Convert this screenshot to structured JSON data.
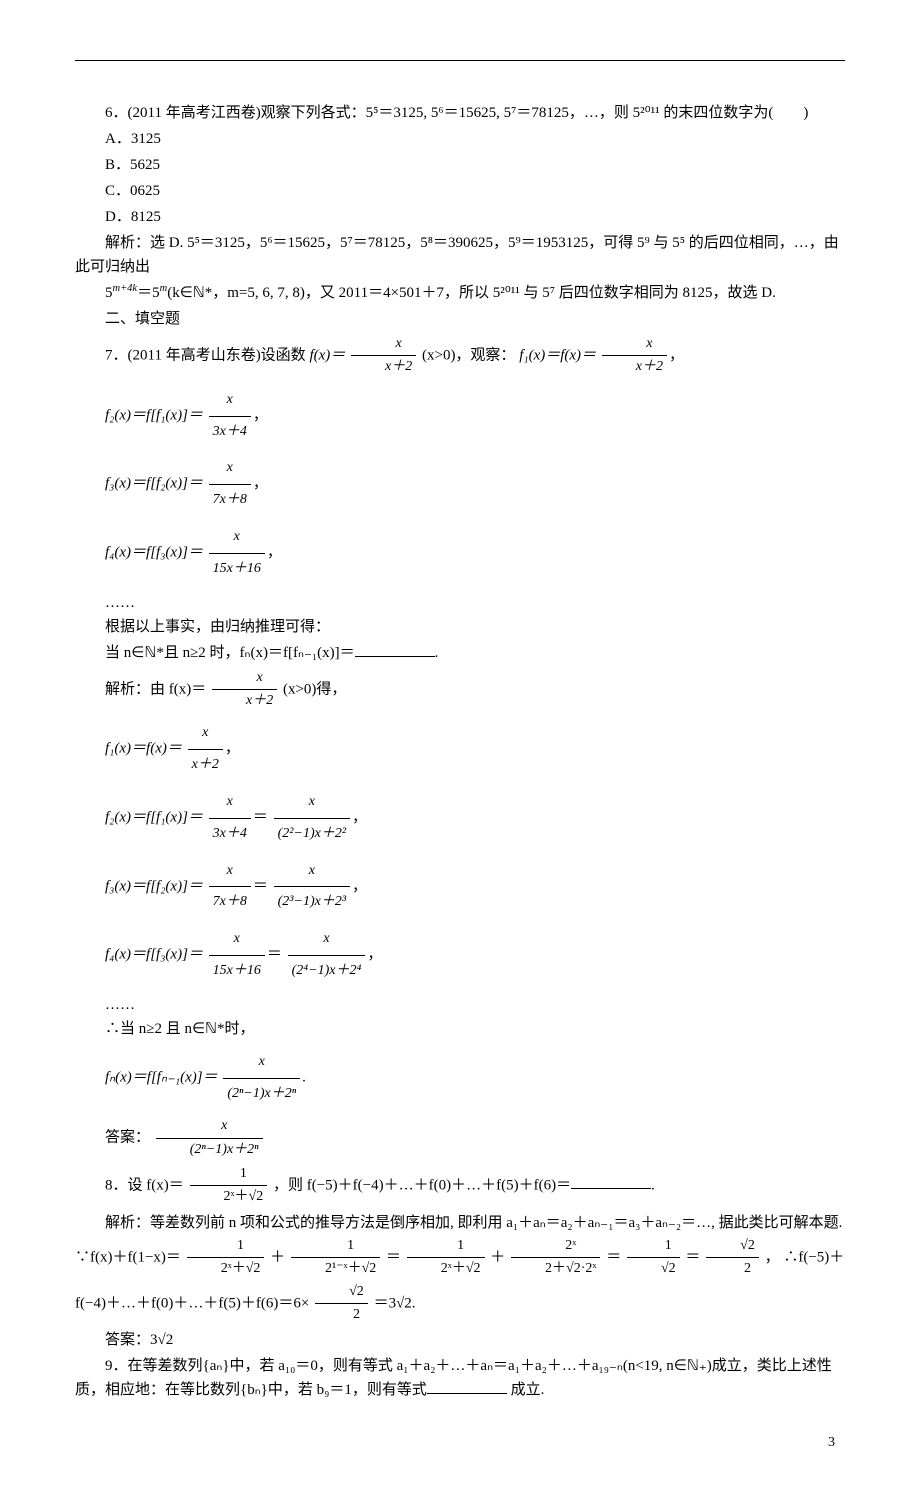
{
  "q6": {
    "text": "6．(2011 年高考江西卷)观察下列各式：5⁵＝3125, 5⁶＝15625, 5⁷＝78125，…，则 5²⁰¹¹ 的末四位数字为(　　)",
    "optA": "A．3125",
    "optB": "B．5625",
    "optC": "C．0625",
    "optD": "D．8125",
    "expl1": "解析：选 D. 5⁵＝3125，5⁶＝15625，5⁷＝78125，5⁸＝390625，5⁹＝1953125，可得 5⁹ 与 5⁵ 的后四位相同，…，由此可归纳出",
    "expl2_pre": "5",
    "expl2_sup1": "m+4k",
    "expl2_mid1": "＝5",
    "expl2_sup2": "m",
    "expl2_mid2": "(k∈ℕ*，m=5, 6, 7, 8)，又 2011＝4×501＋7，所以 5²⁰¹¹ 与 5⁷ 后四位数字相同为 8125，故选 D."
  },
  "sec2": "二、填空题",
  "q7": {
    "intro_pre": "7．(2011 年高考山东卷)设函数 ",
    "intro_fx": "f(x)＝",
    "intro_frac_num": "x",
    "intro_frac_den": "x＋2",
    "intro_cond": "(x>0)，观察：",
    "intro_f1": "f₁(x)＝f(x)＝",
    "f1_num": "x",
    "f1_den": "x＋2",
    "f2_lhs": "f₂(x)＝f[f₁(x)]＝",
    "f2_num": "x",
    "f2_den": "3x＋4",
    "f3_lhs": "f₃(x)＝f[f₂(x)]＝",
    "f3_num": "x",
    "f3_den": "7x＋8",
    "f4_lhs": "f₄(x)＝f[f₃(x)]＝",
    "f4_num": "x",
    "f4_den": "15x＋16",
    "dots": "……",
    "line_induct": "根据以上事实，由归纳推理可得：",
    "line_when": "当 n∈ℕ*且 n≥2 时，fₙ(x)＝f[fₙ₋₁(x)]＝",
    "expl_intro": "解析：由 f(x)＝",
    "expl_cond": "(x>0)得，",
    "expl_f1": "f₁(x)＝f(x)＝",
    "expl_f2_lhs": "f₂(x)＝f[f₁(x)]＝",
    "expl_f2_num2": "x",
    "expl_f2_den2": "(2²−1)x＋2²",
    "expl_f3_lhs": "f₃(x)＝f[f₂(x)]＝",
    "expl_f3_num2": "x",
    "expl_f3_den2": "(2³−1)x＋2³",
    "expl_f4_lhs": "f₄(x)＝f[f₃(x)]＝",
    "expl_f4_num2": "x",
    "expl_f4_den2": "(2⁴−1)x＋2⁴",
    "therefore": "∴当 n≥2 且 n∈ℕ*时，",
    "fn_lhs": "fₙ(x)＝f[fₙ₋₁(x)]＝",
    "fn_num": "x",
    "fn_den": "(2ⁿ−1)x＋2ⁿ",
    "ans_label": "答案：",
    "ans_num": "x",
    "ans_den": "(2ⁿ−1)x＋2ⁿ"
  },
  "q8": {
    "intro": "8．设 f(x)＝",
    "f_num": "1",
    "f_den": "2ˣ＋√2",
    "intro2": "，则 f(−5)＋f(−4)＋…＋f(0)＋…＋f(5)＋f(6)＝",
    "expl1": "解析：等差数列前 n 项和公式的推导方法是倒序相加, 即利用 a₁＋aₙ＝a₂＋aₙ₋₁＝a₃＋aₙ₋₂＝…, 据此类比可解本题.  ∵f(x)＋f(1−x)＝",
    "t1_num": "1",
    "t1_den": "2ˣ＋√2",
    "plus": "＋",
    "t2_num": "1",
    "t2_den": "2¹⁻ˣ＋√2",
    "eq": "＝",
    "t3_num": "1",
    "t3_den": "2ˣ＋√2",
    "t4_num": "2ˣ",
    "t4_den": "2＋√2·2ˣ",
    "t5_num": "1",
    "t5_den": "√2",
    "t6_num": "√2",
    "t6_den": "2",
    "concl_mid": "，  ∴f(−5)＋f(−4)＋…＋f(0)＋…＋f(5)＋f(6)＝6×",
    "concl_end": "＝3√2.",
    "ans_label": "答案：3√2"
  },
  "q9": {
    "text": "9．在等差数列{aₙ}中，若 a₁₀＝0，则有等式 a₁＋a₂＋…＋aₙ＝a₁＋a₂＋…＋a₁₉₋ₙ(n<19, n∈ℕ₊)成立，类比上述性质，相应地：在等比数列{bₙ}中，若 b₉＝1，则有等式",
    "text2": "成立."
  },
  "page": "3"
}
